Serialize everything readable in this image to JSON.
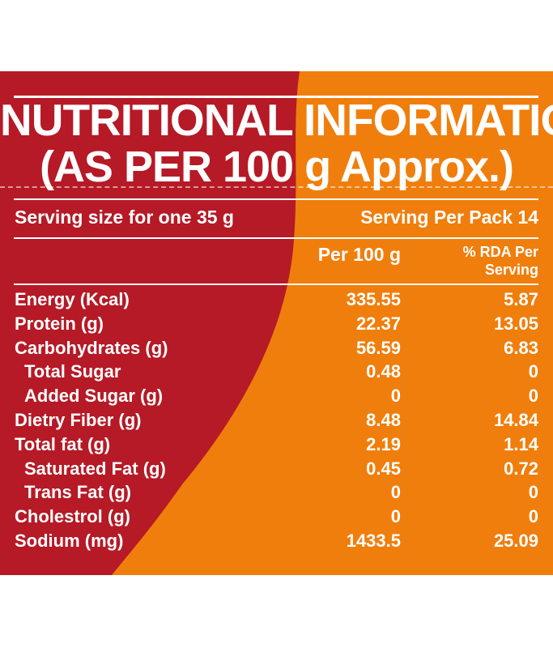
{
  "label": {
    "title_line1": "NUTRITIONAL INFORMATION",
    "title_line2": "(AS PER 100 g Approx.)",
    "serving_size": "Serving size for one 35 g",
    "serving_per_pack": "Serving Per Pack 14",
    "col_per100": "Per 100 g",
    "col_rda": "% RDA Per Serving"
  },
  "rows": [
    {
      "label": "Energy (Kcal)",
      "per100": "335.55",
      "rda": "5.87",
      "indent": false
    },
    {
      "label": "Protein (g)",
      "per100": "22.37",
      "rda": "13.05",
      "indent": false
    },
    {
      "label": "Carbohydrates (g)",
      "per100": "56.59",
      "rda": "6.83",
      "indent": false
    },
    {
      "label": "Total Sugar",
      "per100": "0.48",
      "rda": "0",
      "indent": true
    },
    {
      "label": "Added Sugar (g)",
      "per100": "0",
      "rda": "0",
      "indent": true
    },
    {
      "label": "Dietry Fiber (g)",
      "per100": "8.48",
      "rda": "14.84",
      "indent": false
    },
    {
      "label": "Total fat (g)",
      "per100": "2.19",
      "rda": "1.14",
      "indent": false
    },
    {
      "label": "Saturated Fat (g)",
      "per100": "0.45",
      "rda": "0.72",
      "indent": true
    },
    {
      "label": "Trans Fat (g)",
      "per100": "0",
      "rda": "0",
      "indent": true
    },
    {
      "label": "Cholestrol (g)",
      "per100": "0",
      "rda": "0",
      "indent": false
    },
    {
      "label": "Sodium (mg)",
      "per100": "1433.5",
      "rda": "25.09",
      "indent": false
    }
  ],
  "colors": {
    "red": "#b51a26",
    "orange": "#f07e0c",
    "text": "#ffffff"
  }
}
